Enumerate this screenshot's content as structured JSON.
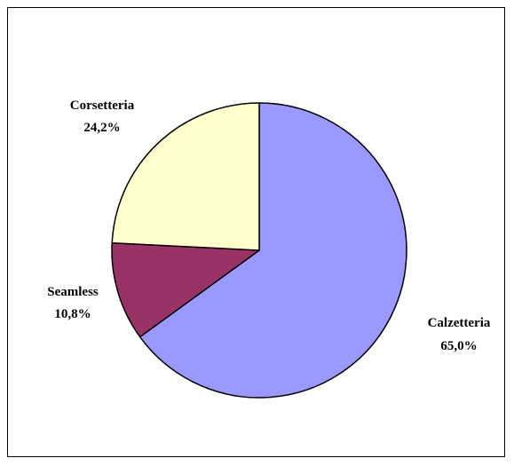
{
  "chart_data": {
    "type": "pie",
    "slices": [
      {
        "name": "Calzetteria",
        "value_label": "65,0%",
        "value": 65.0,
        "color": "#9999FF"
      },
      {
        "name": "Seamless",
        "value_label": "10,8%",
        "value": 10.8,
        "color": "#993366"
      },
      {
        "name": "Corsetteria",
        "value_label": "24,2%",
        "value": 24.2,
        "color": "#FFFFCC"
      }
    ],
    "start_angle_deg": 0,
    "direction": "clockwise",
    "legend": "none"
  }
}
